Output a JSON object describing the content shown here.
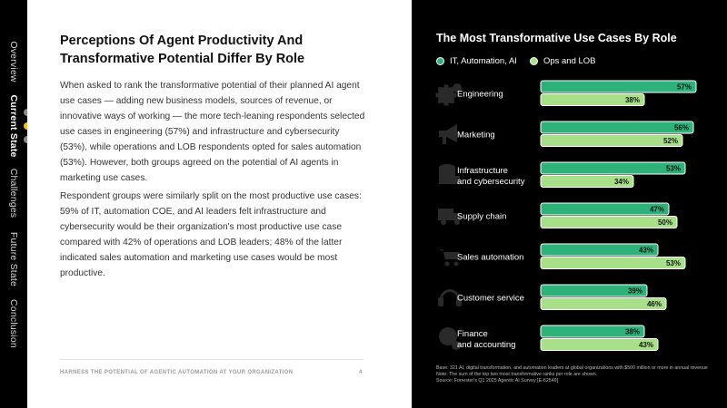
{
  "nav": {
    "items": [
      {
        "label": "Overview",
        "active": false
      },
      {
        "label": "Current State",
        "active": true
      },
      {
        "label": "Challenges",
        "active": false
      },
      {
        "label": "Future State",
        "active": false
      },
      {
        "label": "Conclusion",
        "active": false
      }
    ]
  },
  "content": {
    "title": "Perceptions Of Agent Productivity And Transformative Potential Differ By Role",
    "paragraphs": [
      "When asked to rank the transformative potential of their planned AI agent use cases — adding new business models, sources of revenue, or innovative ways of working — the more tech-leaning respondents selected use cases in engineering (57%) and infrastructure and cybersecurity (53%), while operations and LOB respondents opted for sales automation (53%). However, both groups agreed on the potential of AI agents in marketing use cases.",
      "Respondent groups were similarly split on the most productive use cases: 59% of IT, automation COE, and AI leaders felt infrastructure and cybersecurity would be their organization's most productive use case compared with 42% of operations and LOB leaders; 48% of the latter indicated sales automation and marketing use cases would be most productive."
    ],
    "footer": "HARNESS THE POTENTIAL OF AGENTIC AUTOMATION AT YOUR ORGANIZATION",
    "page_number": "4"
  },
  "chart_notes": [
    "Base: 321 AI, digital transformation, and automation leaders at global organizations with $500 million or more in annual revenue",
    "Note: The sum of the top two most transformative ranks per role are shown.",
    "Source: Forrester's Q1 2025 Agentic AI Survey [E-62549]"
  ],
  "colors": {
    "it_series": "#2db37a",
    "ops_series": "#a8e08a",
    "nav_active_dot": "#f5c400"
  },
  "chart_data": {
    "type": "bar",
    "orientation": "horizontal",
    "title": "The Most Transformative Use Cases By Role",
    "legend_position": "top-left",
    "categories": [
      {
        "label": [
          "Engineering"
        ],
        "icon": "gear-icon"
      },
      {
        "label": [
          "Marketing"
        ],
        "icon": "megaphone-icon"
      },
      {
        "label": [
          "Infrastructure",
          "and cybersecurity"
        ],
        "icon": "database-lock-icon"
      },
      {
        "label": [
          "Supply chain"
        ],
        "icon": "truck-icon"
      },
      {
        "label": [
          "Sales automation"
        ],
        "icon": "cart-cycle-icon"
      },
      {
        "label": [
          "Customer service"
        ],
        "icon": "headset-icon"
      },
      {
        "label": [
          "Finance",
          "and accounting"
        ],
        "icon": "dollar-cycle-icon"
      }
    ],
    "series": [
      {
        "name": "IT, Automation, AI",
        "values": [
          57,
          56,
          53,
          47,
          43,
          39,
          38
        ]
      },
      {
        "name": "Ops and LOB",
        "values": [
          38,
          52,
          34,
          50,
          53,
          46,
          43
        ]
      }
    ],
    "value_suffix": "%",
    "xlim": [
      0,
      60
    ]
  }
}
